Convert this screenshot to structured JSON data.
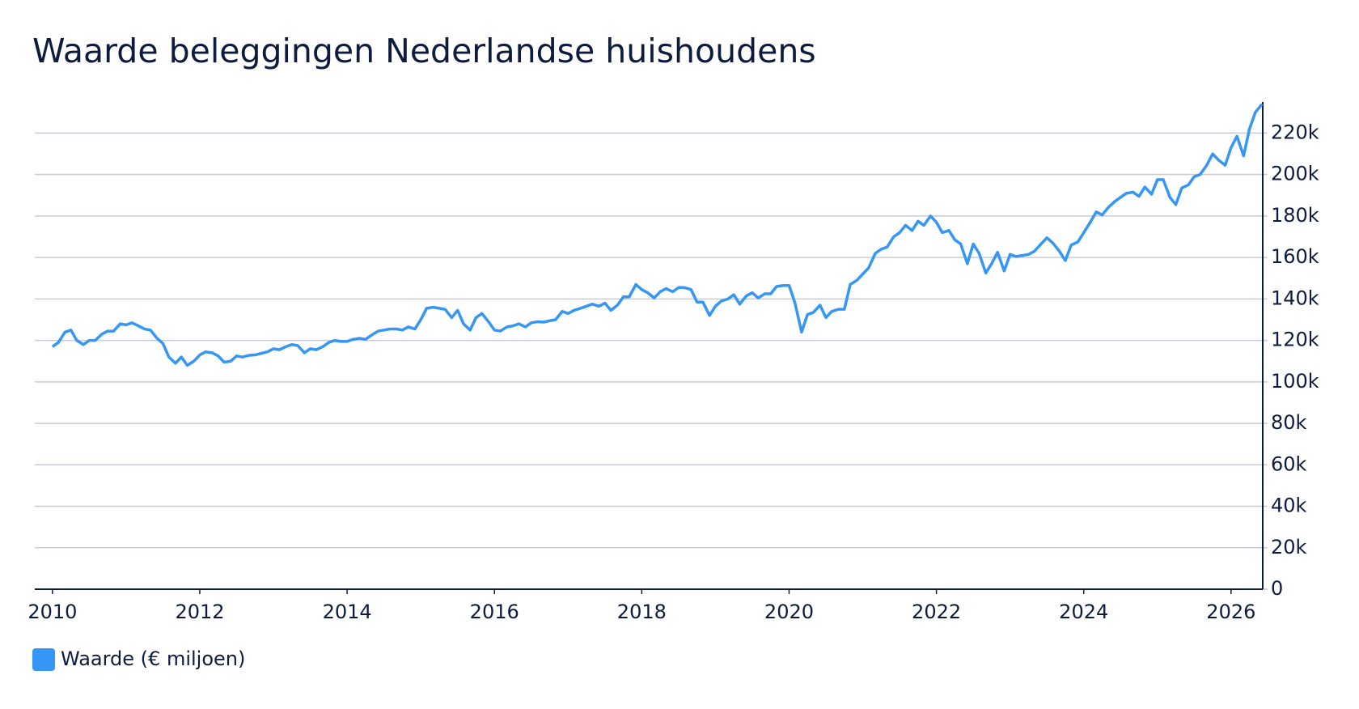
{
  "chart_data": {
    "type": "line",
    "title": "Waarde beleggingen Nederlandse huishoudens",
    "x": [
      2010,
      2010.08,
      2010.17,
      2010.25,
      2010.33,
      2010.42,
      2010.5,
      2010.58,
      2010.67,
      2010.75,
      2010.83,
      2010.92,
      2011,
      2011.08,
      2011.17,
      2011.25,
      2011.33,
      2011.42,
      2011.5,
      2011.58,
      2011.67,
      2011.75,
      2011.83,
      2011.92,
      2012,
      2012.08,
      2012.17,
      2012.25,
      2012.33,
      2012.42,
      2012.5,
      2012.58,
      2012.67,
      2012.75,
      2012.83,
      2012.92,
      2013,
      2013.08,
      2013.17,
      2013.25,
      2013.33,
      2013.42,
      2013.5,
      2013.58,
      2013.67,
      2013.75,
      2013.83,
      2013.92,
      2014,
      2014.08,
      2014.17,
      2014.25,
      2014.33,
      2014.42,
      2014.5,
      2014.58,
      2014.67,
      2014.75,
      2014.83,
      2014.92,
      2015,
      2015.08,
      2015.17,
      2015.25,
      2015.33,
      2015.42,
      2015.5,
      2015.58,
      2015.67,
      2015.75,
      2015.83,
      2015.92,
      2016,
      2016.08,
      2016.17,
      2016.25,
      2016.33,
      2016.42,
      2016.5,
      2016.58,
      2016.67,
      2016.75,
      2016.83,
      2016.92,
      2017,
      2017.08,
      2017.17,
      2017.25,
      2017.33,
      2017.42,
      2017.5,
      2017.58,
      2017.67,
      2017.75,
      2017.83,
      2017.92,
      2018,
      2018.08,
      2018.17,
      2018.25,
      2018.33,
      2018.42,
      2018.5,
      2018.58,
      2018.67,
      2018.75,
      2018.83,
      2018.92,
      2019,
      2019.08,
      2019.17,
      2019.25,
      2019.33,
      2019.42,
      2019.5,
      2019.58,
      2019.67,
      2019.75,
      2019.83,
      2019.92,
      2020,
      2020.08,
      2020.17,
      2020.25,
      2020.33,
      2020.42,
      2020.5,
      2020.58,
      2020.67,
      2020.75,
      2020.83,
      2020.92,
      2021,
      2021.08,
      2021.17,
      2021.25,
      2021.33,
      2021.42,
      2021.5,
      2021.58,
      2021.67,
      2021.75,
      2021.83,
      2021.92,
      2022,
      2022.08,
      2022.17,
      2022.25,
      2022.33,
      2022.42,
      2022.5,
      2022.58,
      2022.67,
      2022.75,
      2022.83,
      2022.92,
      2023,
      2023.08,
      2023.17,
      2023.25,
      2023.33,
      2023.42,
      2023.5,
      2023.58,
      2023.67,
      2023.75,
      2023.83,
      2023.92,
      2024,
      2024.08,
      2024.17,
      2024.25,
      2024.33,
      2024.42,
      2024.5,
      2024.58,
      2024.67,
      2024.75,
      2024.83,
      2024.92,
      2025,
      2025.08,
      2025.17,
      2025.25,
      2025.33,
      2025.42,
      2025.5,
      2025.58,
      2025.67,
      2025.75,
      2025.83,
      2025.92,
      2026,
      2026.08,
      2026.17,
      2026.25,
      2026.33,
      2026.42
    ],
    "series": [
      {
        "name": "Waarde (€ miljoen)",
        "color": "#3596f5",
        "values": [
          117000,
          119000,
          124000,
          125000,
          120000,
          118000,
          120000,
          120000,
          123000,
          124500,
          124500,
          128000,
          127500,
          128500,
          127000,
          125500,
          125000,
          121000,
          118500,
          112000,
          109000,
          112000,
          108000,
          110000,
          113000,
          114500,
          114000,
          112500,
          109500,
          110000,
          112500,
          112000,
          112800,
          113000,
          113700,
          114500,
          116000,
          115500,
          117000,
          118000,
          117500,
          114000,
          116000,
          115500,
          117000,
          119000,
          120000,
          119500,
          119500,
          120500,
          121000,
          120500,
          122500,
          124500,
          125000,
          125500,
          125500,
          125000,
          126500,
          125500,
          130000,
          135500,
          136000,
          135500,
          135000,
          131000,
          134500,
          128000,
          125000,
          131000,
          133000,
          129000,
          125000,
          124500,
          126500,
          127000,
          128000,
          126500,
          128500,
          129000,
          128800,
          129500,
          130000,
          134000,
          133000,
          134500,
          135500,
          136500,
          137500,
          136500,
          138000,
          134500,
          137000,
          141000,
          141000,
          147000,
          144500,
          143000,
          140500,
          143500,
          145000,
          143500,
          145500,
          145500,
          144500,
          138500,
          138500,
          132000,
          136500,
          139000,
          140000,
          142000,
          137500,
          141500,
          143000,
          140500,
          142500,
          142500,
          146000,
          146500,
          146500,
          138000,
          124000,
          132500,
          133500,
          137000,
          131000,
          134000,
          135000,
          135000,
          147000,
          149000,
          152000,
          155000,
          162000,
          164000,
          165000,
          170000,
          172000,
          175500,
          173000,
          177500,
          175500,
          180000,
          177000,
          172000,
          173000,
          168500,
          166500,
          157000,
          166500,
          162000,
          152500,
          157000,
          162500,
          153500,
          161500,
          160500,
          161000,
          161500,
          163000,
          166500,
          169500,
          167000,
          163000,
          158500,
          166000,
          167500,
          172000,
          176500,
          182000,
          180500,
          184000,
          187000,
          189000,
          191000,
          191500,
          189500,
          194000,
          190500,
          197500,
          197500,
          189000,
          185500,
          193500,
          195000,
          199000,
          200000,
          204500,
          210000,
          207000,
          204500,
          213000,
          218500,
          209000,
          222000,
          230000,
          234000
        ]
      }
    ],
    "xlim": [
      2009.76,
      2026.43
    ],
    "xticks": [
      2010,
      2012,
      2014,
      2016,
      2018,
      2020,
      2022,
      2024,
      2026
    ],
    "ylim": [
      0,
      235000
    ],
    "yticks": [
      0,
      {
        "value": 20000,
        "label": "20k"
      },
      {
        "value": 40000,
        "label": "40k"
      },
      {
        "value": 60000,
        "label": "60k"
      },
      {
        "value": 80000,
        "label": "80k"
      },
      {
        "value": 100000,
        "label": "100k"
      },
      {
        "value": 120000,
        "label": "120k"
      },
      {
        "value": 140000,
        "label": "140k"
      },
      {
        "value": 160000,
        "label": "160k"
      },
      {
        "value": 180000,
        "label": "180k"
      },
      {
        "value": 200000,
        "label": "200k"
      },
      {
        "value": 220000,
        "label": "220k"
      }
    ],
    "grid": true
  }
}
